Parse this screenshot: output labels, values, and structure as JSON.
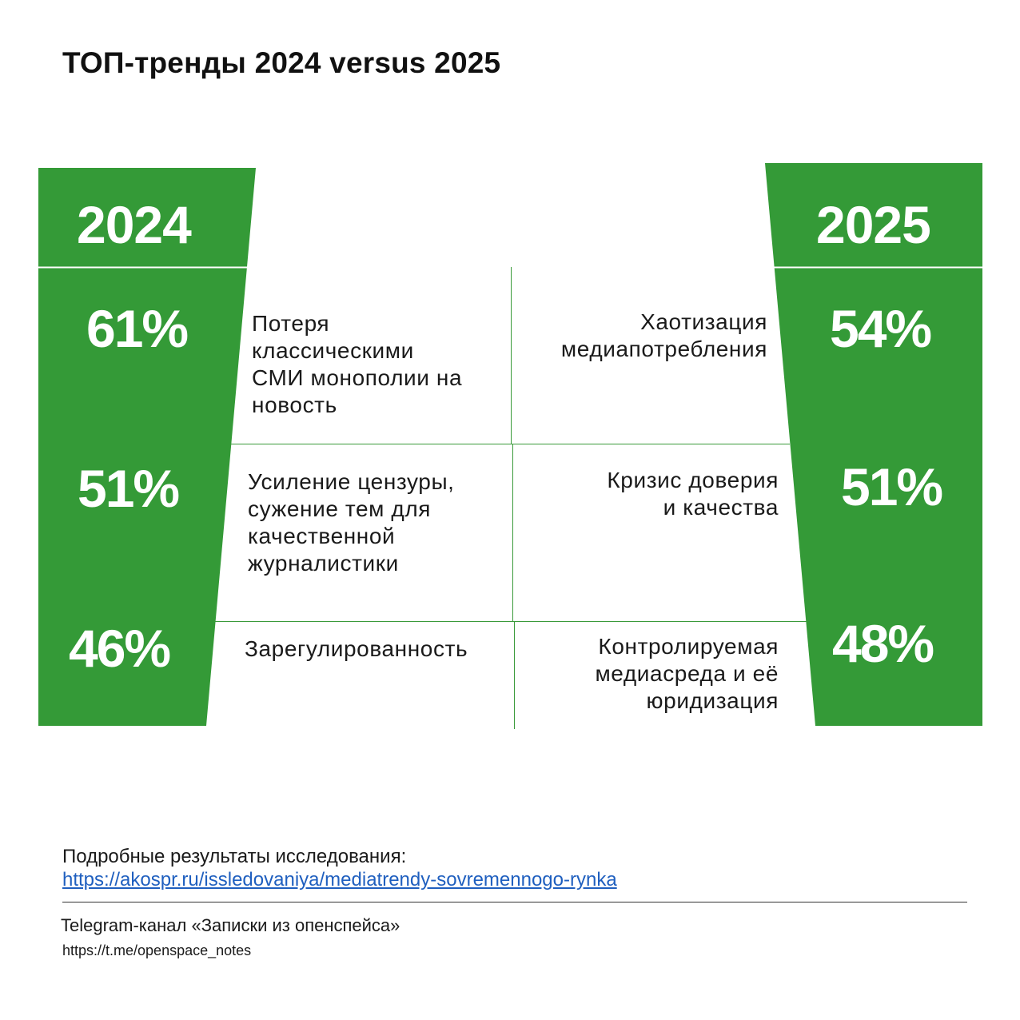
{
  "title": "ТОП-тренды 2024 versus 2025",
  "colors": {
    "green": "#349a37",
    "divider": "#3a9a3a",
    "link": "#1f5fbf"
  },
  "left": {
    "year": "2024",
    "rows": [
      {
        "percent": "61%",
        "value": 61,
        "trend": [
          "Потеря",
          "классическими",
          "СМИ монополии на",
          "новость"
        ]
      },
      {
        "percent": "51%",
        "value": 51,
        "trend": [
          "Усиление цензуры,",
          "сужение тем для",
          "качественной",
          "журналистики"
        ]
      },
      {
        "percent": "46%",
        "value": 46,
        "trend": [
          "Зарегулированность"
        ]
      }
    ]
  },
  "right": {
    "year": "2025",
    "rows": [
      {
        "percent": "54%",
        "value": 54,
        "trend": [
          "Хаотизация",
          "медиапотребления"
        ]
      },
      {
        "percent": "51%",
        "value": 51,
        "trend": [
          "Кризис доверия",
          "и качества"
        ]
      },
      {
        "percent": "48%",
        "value": 48,
        "trend": [
          "Контролируемая",
          "медиасреда и её",
          "юридизация"
        ]
      }
    ]
  },
  "footer": {
    "results_label": "Подробные результаты исследования:",
    "results_link": "https://akospr.ru/issledovaniya/mediatrendy-sovremennogo-rynka",
    "telegram_label": "Telegram-канал «Записки из опенспейса»",
    "telegram_link": "https://t.me/openspace_notes"
  }
}
